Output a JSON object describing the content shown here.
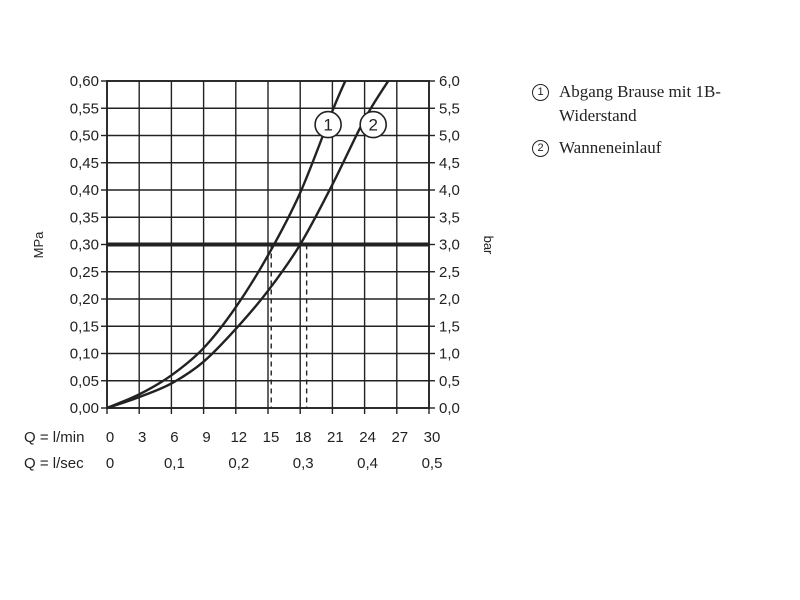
{
  "chart_data": {
    "type": "line",
    "y_left_label": "MPa",
    "y_right_label": "bar",
    "y_left_ticks": [
      "0,00",
      "0,05",
      "0,10",
      "0,15",
      "0,20",
      "0,25",
      "0,30",
      "0,35",
      "0,40",
      "0,45",
      "0,50",
      "0,55",
      "0,60"
    ],
    "y_right_ticks": [
      "0,0",
      "0,5",
      "1,0",
      "1,5",
      "2,0",
      "2,5",
      "3,0",
      "3,5",
      "4,0",
      "4,5",
      "5,0",
      "5,5",
      "6,0"
    ],
    "y_range": [
      0,
      0.6
    ],
    "x_range": [
      0,
      30
    ],
    "x_lmin_label": "Q = l/min",
    "x_lmin_ticks": [
      "0",
      "3",
      "6",
      "9",
      "12",
      "15",
      "18",
      "21",
      "24",
      "27",
      "30"
    ],
    "x_lsec_label": "Q = l/sec",
    "x_lsec_ticks": [
      {
        "lmin": 0,
        "label": "0"
      },
      {
        "lmin": 6,
        "label": "0,1"
      },
      {
        "lmin": 12,
        "label": "0,2"
      },
      {
        "lmin": 18,
        "label": "0,3"
      },
      {
        "lmin": 24,
        "label": "0,4"
      },
      {
        "lmin": 30,
        "label": "0,5"
      }
    ],
    "grid": true,
    "reference_line": {
      "y": 0.3
    },
    "series": [
      {
        "name": "①",
        "marker": "1",
        "values": [
          [
            0,
            0
          ],
          [
            3,
            0.025
          ],
          [
            6,
            0.06
          ],
          [
            9,
            0.11
          ],
          [
            12,
            0.185
          ],
          [
            15,
            0.28
          ],
          [
            18,
            0.395
          ],
          [
            21,
            0.545
          ],
          [
            22.2,
            0.6
          ]
        ],
        "drop_x": 15.3
      },
      {
        "name": "②",
        "marker": "2",
        "values": [
          [
            0,
            0
          ],
          [
            3,
            0.02
          ],
          [
            6,
            0.045
          ],
          [
            9,
            0.085
          ],
          [
            12,
            0.145
          ],
          [
            15,
            0.215
          ],
          [
            18,
            0.3
          ],
          [
            21,
            0.41
          ],
          [
            24,
            0.53
          ],
          [
            26.2,
            0.6
          ]
        ],
        "drop_x": 18.6
      }
    ],
    "series_labels": [
      {
        "marker": "1",
        "x": 20.6,
        "y": 0.52
      },
      {
        "marker": "2",
        "x": 24.8,
        "y": 0.52
      }
    ]
  },
  "legend": [
    {
      "marker": "1",
      "text": "Abgang Brause mit 1B-Widerstand"
    },
    {
      "marker": "2",
      "text": "Wanneneinlauf"
    }
  ]
}
